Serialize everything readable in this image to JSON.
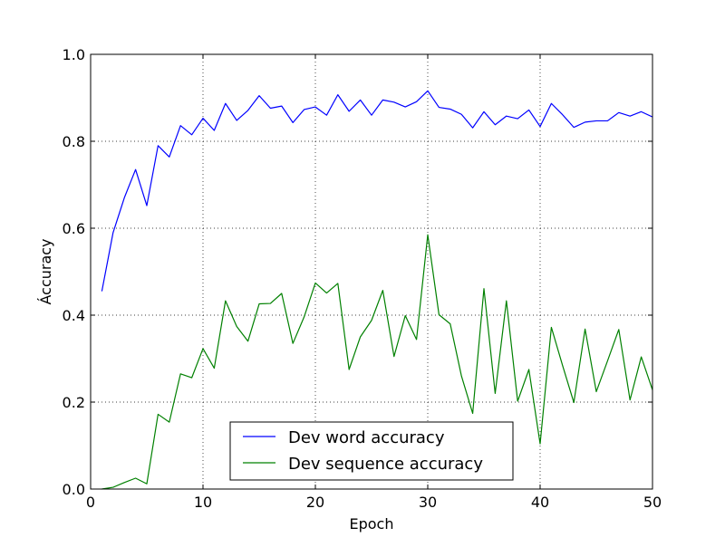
{
  "chart_data": {
    "type": "line",
    "xlabel": "Epoch",
    "ylabel": "Áccuracy",
    "xlim": [
      0,
      50
    ],
    "ylim": [
      0.0,
      1.0
    ],
    "x_ticks": [
      "0",
      "10",
      "20",
      "30",
      "40",
      "50"
    ],
    "y_ticks": [
      "0.0",
      "0.2",
      "0.4",
      "0.6",
      "0.8",
      "1.0"
    ],
    "grid": true,
    "legend_position": "bottom-center",
    "x": [
      1,
      2,
      3,
      4,
      5,
      6,
      7,
      8,
      9,
      10,
      11,
      12,
      13,
      14,
      15,
      16,
      17,
      18,
      19,
      20,
      21,
      22,
      23,
      24,
      25,
      26,
      27,
      28,
      29,
      30,
      31,
      32,
      33,
      34,
      35,
      36,
      37,
      38,
      39,
      40,
      41,
      42,
      43,
      44,
      45,
      46,
      47,
      48,
      49,
      50
    ],
    "series": [
      {
        "name": "Dev word accuracy",
        "color": "#0000ff",
        "values": [
          0.455,
          0.59,
          0.67,
          0.735,
          0.652,
          0.79,
          0.764,
          0.836,
          0.815,
          0.853,
          0.825,
          0.887,
          0.848,
          0.871,
          0.905,
          0.876,
          0.881,
          0.843,
          0.873,
          0.879,
          0.86,
          0.907,
          0.869,
          0.895,
          0.86,
          0.895,
          0.89,
          0.879,
          0.891,
          0.916,
          0.878,
          0.874,
          0.862,
          0.831,
          0.868,
          0.838,
          0.858,
          0.852,
          0.872,
          0.834,
          0.887,
          0.861,
          0.832,
          0.844,
          0.847,
          0.847,
          0.866,
          0.858,
          0.868,
          0.856
        ]
      },
      {
        "name": "Dev sequence accuracy",
        "color": "#008000",
        "values": [
          0.0,
          0.004,
          0.015,
          0.025,
          0.012,
          0.172,
          0.154,
          0.265,
          0.256,
          0.323,
          0.278,
          0.433,
          0.374,
          0.34,
          0.426,
          0.427,
          0.45,
          0.335,
          0.396,
          0.474,
          0.451,
          0.473,
          0.275,
          0.35,
          0.388,
          0.457,
          0.305,
          0.399,
          0.344,
          0.585,
          0.401,
          0.38,
          0.26,
          0.174,
          0.461,
          0.22,
          0.433,
          0.202,
          0.275,
          0.104,
          0.372,
          0.284,
          0.199,
          0.368,
          0.224,
          0.295,
          0.367,
          0.205,
          0.304,
          0.228
        ]
      }
    ]
  }
}
